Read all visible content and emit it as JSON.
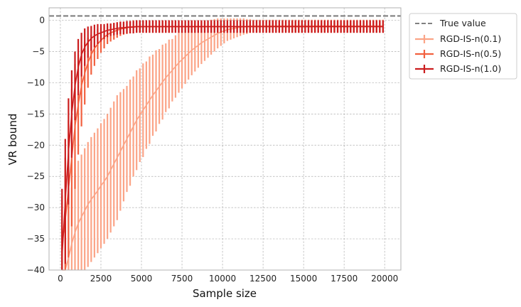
{
  "chart_data": {
    "type": "line",
    "xlabel": "Sample size",
    "ylabel": "VR bound",
    "xlim": [
      -700,
      21000
    ],
    "ylim": [
      -40,
      2
    ],
    "x_ticks": [
      0,
      2500,
      5000,
      7500,
      10000,
      12500,
      15000,
      17500,
      20000
    ],
    "y_ticks": [
      0,
      -5,
      -10,
      -15,
      -20,
      -25,
      -30,
      -35,
      -40
    ],
    "grid": true,
    "legend_position": "outside-right-top",
    "reference_line": {
      "name": "True value",
      "y": 0.7,
      "color": "#808080",
      "style": "dashed"
    },
    "x": [
      100,
      300,
      500,
      700,
      900,
      1100,
      1300,
      1500,
      1700,
      1900,
      2100,
      2300,
      2500,
      2700,
      2900,
      3100,
      3300,
      3500,
      3700,
      3900,
      4100,
      4300,
      4500,
      4700,
      4900,
      5100,
      5300,
      5500,
      5700,
      5900,
      6100,
      6300,
      6500,
      6700,
      6900,
      7100,
      7300,
      7500,
      7700,
      7900,
      8100,
      8300,
      8500,
      8700,
      8900,
      9100,
      9300,
      9500,
      9700,
      9900,
      10100,
      10300,
      10500,
      10700,
      10900,
      11100,
      11300,
      11500,
      11700,
      11900,
      12100,
      12300,
      12500,
      12700,
      12900,
      13100,
      13300,
      13500,
      13700,
      13900,
      14100,
      14300,
      14500,
      14700,
      14900,
      15100,
      15300,
      15500,
      15700,
      15900,
      16100,
      16300,
      16500,
      16700,
      16900,
      17100,
      17300,
      17500,
      17700,
      17900,
      18100,
      18300,
      18500,
      18700,
      18900,
      19100,
      19300,
      19500,
      19700,
      19900
    ],
    "series": [
      {
        "name": "RGD-IS-n(0.1)",
        "color": "#fba487",
        "values": [
          -43.0,
          -40.5,
          -38.0,
          -35.8,
          -34.0,
          -32.5,
          -31.5,
          -30.5,
          -29.5,
          -28.7,
          -28.0,
          -27.3,
          -26.5,
          -25.8,
          -25.0,
          -24.0,
          -23.0,
          -22.0,
          -21.0,
          -20.0,
          -19.0,
          -18.0,
          -17.0,
          -16.0,
          -15.2,
          -14.4,
          -13.6,
          -12.8,
          -12.0,
          -11.3,
          -10.6,
          -9.9,
          -9.2,
          -8.6,
          -8.0,
          -7.4,
          -6.8,
          -6.3,
          -5.8,
          -5.3,
          -4.8,
          -4.4,
          -4.0,
          -3.6,
          -3.3,
          -3.0,
          -2.7,
          -2.4,
          -2.1,
          -1.9,
          -1.7,
          -1.5,
          -1.4,
          -1.3,
          -1.2,
          -1.1,
          -1.0,
          -1.0,
          -0.9,
          -0.9,
          -0.9,
          -0.9,
          -0.9,
          -0.9,
          -0.9,
          -0.9,
          -0.9,
          -0.9,
          -0.9,
          -0.9,
          -0.9,
          -0.9,
          -0.9,
          -0.9,
          -0.9,
          -0.9,
          -0.9,
          -0.9,
          -0.9,
          -0.9,
          -0.9,
          -0.9,
          -0.9,
          -0.9,
          -0.9,
          -0.9,
          -0.9,
          -0.9,
          -0.9,
          -0.9,
          -0.9,
          -0.9,
          -0.9,
          -0.9,
          -0.9,
          -0.9,
          -0.9,
          -0.9,
          -0.9,
          -0.9
        ],
        "errors": [
          6.0,
          7.0,
          8.5,
          9.0,
          9.5,
          10.0,
          10.0,
          10.0,
          10.0,
          10.0,
          10.0,
          10.0,
          10.0,
          10.0,
          10.0,
          10.0,
          10.0,
          10.0,
          9.5,
          9.0,
          8.5,
          8.5,
          8.0,
          8.0,
          7.5,
          7.5,
          7.0,
          7.0,
          6.5,
          6.5,
          6.0,
          6.0,
          5.5,
          5.5,
          5.0,
          5.0,
          4.8,
          4.6,
          4.4,
          4.2,
          4.0,
          3.8,
          3.6,
          3.4,
          3.2,
          3.0,
          2.8,
          2.6,
          2.4,
          2.2,
          2.0,
          1.8,
          1.7,
          1.6,
          1.5,
          1.4,
          1.3,
          1.2,
          1.1,
          1.0,
          1.0,
          1.0,
          1.0,
          1.0,
          1.0,
          1.0,
          1.0,
          1.0,
          1.0,
          1.0,
          1.0,
          1.0,
          1.0,
          1.0,
          1.0,
          1.0,
          1.0,
          1.0,
          1.0,
          1.0,
          1.0,
          1.0,
          1.0,
          1.0,
          1.0,
          1.0,
          1.0,
          1.0,
          1.0,
          1.0,
          1.0,
          1.0,
          1.0,
          1.0,
          1.0,
          1.0,
          1.0,
          1.0,
          1.0,
          1.0
        ]
      },
      {
        "name": "RGD-IS-n(0.5)",
        "color": "#f2603f",
        "values": [
          -36.0,
          -32.0,
          -27.0,
          -22.0,
          -17.0,
          -13.5,
          -10.5,
          -8.5,
          -6.8,
          -5.5,
          -4.5,
          -3.8,
          -3.2,
          -2.7,
          -2.3,
          -2.0,
          -1.8,
          -1.6,
          -1.4,
          -1.3,
          -1.2,
          -1.1,
          -1.0,
          -1.0,
          -1.0,
          -1.0,
          -1.0,
          -1.0,
          -1.0,
          -1.0,
          -1.0,
          -1.0,
          -1.0,
          -1.0,
          -1.0,
          -1.0,
          -1.0,
          -1.0,
          -1.0,
          -1.0,
          -1.0,
          -1.0,
          -1.0,
          -1.0,
          -1.0,
          -1.0,
          -1.0,
          -1.0,
          -1.0,
          -1.0,
          -1.0,
          -1.0,
          -1.0,
          -1.0,
          -1.0,
          -1.0,
          -1.0,
          -1.0,
          -1.0,
          -1.0,
          -1.0,
          -1.0,
          -1.0,
          -1.0,
          -1.0,
          -1.0,
          -1.0,
          -1.0,
          -1.0,
          -1.0,
          -1.0,
          -1.0,
          -1.0,
          -1.0,
          -1.0,
          -1.0,
          -1.0,
          -1.0,
          -1.0,
          -1.0,
          -1.0,
          -1.0,
          -1.0,
          -1.0,
          -1.0,
          -1.0,
          -1.0,
          -1.0,
          -1.0,
          -1.0,
          -1.0,
          -1.0,
          -1.0,
          -1.0,
          -1.0,
          -1.0,
          -1.0,
          -1.0,
          -1.0,
          -1.0
        ],
        "errors": [
          8.0,
          10.0,
          11.0,
          11.0,
          10.0,
          8.0,
          6.5,
          5.0,
          4.0,
          3.2,
          2.8,
          2.4,
          2.0,
          1.8,
          1.5,
          1.4,
          1.3,
          1.2,
          1.1,
          1.0,
          1.0,
          1.0,
          1.0,
          1.0,
          1.0,
          1.0,
          1.0,
          1.0,
          1.0,
          1.0,
          1.0,
          1.0,
          1.0,
          1.0,
          1.0,
          1.0,
          1.0,
          1.0,
          1.0,
          1.0,
          1.0,
          1.0,
          1.0,
          1.0,
          1.0,
          1.0,
          1.0,
          1.0,
          1.0,
          1.0,
          1.0,
          1.0,
          1.0,
          1.0,
          1.0,
          1.0,
          1.0,
          1.0,
          1.0,
          1.0,
          1.0,
          1.0,
          1.0,
          1.0,
          1.0,
          1.0,
          1.0,
          1.0,
          1.0,
          1.0,
          1.0,
          1.0,
          1.0,
          1.0,
          1.0,
          1.0,
          1.0,
          1.0,
          1.0,
          1.0,
          1.0,
          1.0,
          1.0,
          1.0,
          1.0,
          1.0,
          1.0,
          1.0,
          1.0,
          1.0,
          1.0,
          1.0,
          1.0,
          1.0,
          1.0,
          1.0,
          1.0,
          1.0,
          1.0,
          1.0
        ]
      },
      {
        "name": "RGD-IS-n(1.0)",
        "color": "#cb1d1e",
        "values": [
          -38.0,
          -29.0,
          -21.0,
          -15.0,
          -10.5,
          -7.5,
          -5.5,
          -4.3,
          -3.5,
          -2.9,
          -2.5,
          -2.2,
          -2.0,
          -1.8,
          -1.6,
          -1.5,
          -1.4,
          -1.3,
          -1.2,
          -1.2,
          -1.1,
          -1.1,
          -1.1,
          -1.0,
          -1.0,
          -1.0,
          -1.0,
          -1.0,
          -1.0,
          -1.0,
          -1.0,
          -1.0,
          -1.0,
          -1.0,
          -1.0,
          -1.0,
          -1.0,
          -1.0,
          -1.0,
          -1.0,
          -1.0,
          -1.0,
          -1.0,
          -1.0,
          -1.0,
          -1.0,
          -1.0,
          -1.0,
          -1.0,
          -1.0,
          -1.0,
          -1.0,
          -1.0,
          -1.0,
          -1.0,
          -1.0,
          -1.0,
          -1.0,
          -1.0,
          -1.0,
          -1.0,
          -1.0,
          -1.0,
          -1.0,
          -1.0,
          -1.0,
          -1.0,
          -1.0,
          -1.0,
          -1.0,
          -1.0,
          -1.0,
          -1.0,
          -1.0,
          -1.0,
          -1.0,
          -1.0,
          -1.0,
          -1.0,
          -1.0,
          -1.0,
          -1.0,
          -1.0,
          -1.0,
          -1.0,
          -1.0,
          -1.0,
          -1.0,
          -1.0,
          -1.0,
          -1.0,
          -1.0,
          -1.0,
          -1.0,
          -1.0,
          -1.0,
          -1.0,
          -1.0,
          -1.0,
          -1.0
        ],
        "errors": [
          11.0,
          10.0,
          8.5,
          7.0,
          5.5,
          4.5,
          3.5,
          3.0,
          2.5,
          2.0,
          1.8,
          1.6,
          1.4,
          1.2,
          1.1,
          1.0,
          1.0,
          1.0,
          1.0,
          1.0,
          1.0,
          1.0,
          1.0,
          1.0,
          1.0,
          1.0,
          1.0,
          1.0,
          1.0,
          1.0,
          1.0,
          1.0,
          1.0,
          1.0,
          1.0,
          1.0,
          1.0,
          1.0,
          1.0,
          1.0,
          1.0,
          1.0,
          1.0,
          1.0,
          1.0,
          1.0,
          1.0,
          1.0,
          1.0,
          1.0,
          1.0,
          1.0,
          1.0,
          1.0,
          1.0,
          1.0,
          1.0,
          1.0,
          1.0,
          1.0,
          1.0,
          1.0,
          1.0,
          1.0,
          1.0,
          1.0,
          1.0,
          1.0,
          1.0,
          1.0,
          1.0,
          1.0,
          1.0,
          1.0,
          1.0,
          1.0,
          1.0,
          1.0,
          1.0,
          1.0,
          1.0,
          1.0,
          1.0,
          1.0,
          1.0,
          1.0,
          1.0,
          1.0,
          1.0,
          1.0,
          1.0,
          1.0,
          1.0,
          1.0,
          1.0,
          1.0,
          1.0,
          1.0,
          1.0,
          1.0
        ]
      }
    ]
  }
}
